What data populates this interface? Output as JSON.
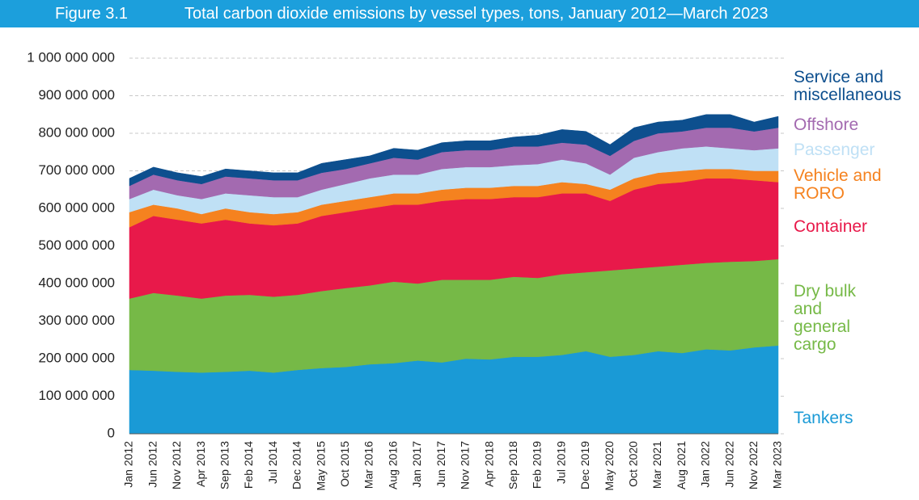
{
  "chart_data": {
    "type": "stacked_area",
    "figure_label": "Figure 3.1",
    "title": "Total carbon dioxide emissions by vessel types, tons, January 2012—March 2023",
    "categories": [
      "Jan 2012",
      "Jun 2012",
      "Nov 2012",
      "Apr 2013",
      "Sep 2013",
      "Feb 2014",
      "Jul 2014",
      "Dec 2014",
      "May 2015",
      "Oct 2015",
      "Mar 2016",
      "Aug 2016",
      "Jan 2017",
      "Jun 2017",
      "Nov 2017",
      "Apr 2018",
      "Sep 2018",
      "Feb 2019",
      "Jul 2019",
      "Dec 2019",
      "May 2020",
      "Oct 2020",
      "Mar 2021",
      "Aug 2021",
      "Jan 2022",
      "Jun 2022",
      "Nov 2022",
      "Mar 2023"
    ],
    "ylim": [
      0,
      1000000000
    ],
    "yticks": [
      0,
      {
        "value": 100000000,
        "label": "100 000 000"
      },
      {
        "value": 200000000,
        "label": "200 000 000"
      },
      {
        "value": 300000000,
        "label": "300 000 000"
      },
      {
        "value": 400000000,
        "label": "400 000 000"
      },
      {
        "value": 500000000,
        "label": "500 000 000"
      },
      {
        "value": 600000000,
        "label": "600 000 000"
      },
      {
        "value": 700000000,
        "label": "700 000 000"
      },
      {
        "value": 800000000,
        "label": "800 000 000"
      },
      {
        "value": 900000000,
        "label": "900 000 000"
      },
      {
        "value": 1000000000,
        "label": "1 000 000 000"
      }
    ],
    "grid": true,
    "series": [
      {
        "name": "Tankers",
        "color": "#1a9ad6",
        "values": [
          170000000,
          168000000,
          165000000,
          163000000,
          165000000,
          168000000,
          163000000,
          170000000,
          175000000,
          178000000,
          185000000,
          188000000,
          195000000,
          190000000,
          200000000,
          198000000,
          205000000,
          205000000,
          210000000,
          220000000,
          205000000,
          210000000,
          220000000,
          215000000,
          225000000,
          222000000,
          230000000,
          235000000
        ]
      },
      {
        "name": "Dry bulk and general cargo",
        "color": "#76b947",
        "values": [
          190000000,
          207000000,
          203000000,
          197000000,
          203000000,
          202000000,
          202000000,
          200000000,
          205000000,
          210000000,
          210000000,
          217000000,
          205000000,
          220000000,
          210000000,
          212000000,
          213000000,
          210000000,
          215000000,
          210000000,
          230000000,
          230000000,
          225000000,
          235000000,
          230000000,
          236000000,
          230000000,
          230000000
        ]
      },
      {
        "name": "Container",
        "color": "#e8194a",
        "values": [
          190000000,
          205000000,
          202000000,
          200000000,
          202000000,
          190000000,
          190000000,
          190000000,
          200000000,
          202000000,
          205000000,
          205000000,
          210000000,
          210000000,
          215000000,
          215000000,
          212000000,
          215000000,
          215000000,
          210000000,
          185000000,
          210000000,
          220000000,
          220000000,
          225000000,
          222000000,
          215000000,
          205000000
        ]
      },
      {
        "name": "Vehicle and RORO",
        "color": "#f5821f",
        "values": [
          40000000,
          30000000,
          30000000,
          25000000,
          30000000,
          30000000,
          30000000,
          30000000,
          30000000,
          30000000,
          30000000,
          30000000,
          30000000,
          30000000,
          30000000,
          30000000,
          30000000,
          30000000,
          30000000,
          25000000,
          30000000,
          30000000,
          30000000,
          30000000,
          25000000,
          25000000,
          25000000,
          30000000
        ]
      },
      {
        "name": "Passenger",
        "color": "#bfe0f5",
        "values": [
          35000000,
          40000000,
          35000000,
          40000000,
          40000000,
          45000000,
          45000000,
          40000000,
          40000000,
          45000000,
          50000000,
          50000000,
          50000000,
          55000000,
          55000000,
          55000000,
          55000000,
          58000000,
          60000000,
          55000000,
          40000000,
          55000000,
          55000000,
          60000000,
          60000000,
          55000000,
          55000000,
          60000000
        ]
      },
      {
        "name": "Offshore",
        "color": "#a36ab0",
        "values": [
          35000000,
          40000000,
          40000000,
          40000000,
          45000000,
          45000000,
          45000000,
          45000000,
          45000000,
          40000000,
          40000000,
          45000000,
          40000000,
          45000000,
          45000000,
          45000000,
          50000000,
          47000000,
          45000000,
          50000000,
          50000000,
          45000000,
          50000000,
          45000000,
          50000000,
          55000000,
          50000000,
          55000000
        ]
      },
      {
        "name": "Service and miscellaneous",
        "color": "#0d4f8e",
        "values": [
          20000000,
          20000000,
          20000000,
          20000000,
          20000000,
          20000000,
          20000000,
          20000000,
          25000000,
          25000000,
          20000000,
          25000000,
          25000000,
          25000000,
          25000000,
          25000000,
          25000000,
          30000000,
          35000000,
          35000000,
          30000000,
          35000000,
          30000000,
          30000000,
          35000000,
          35000000,
          25000000,
          30000000
        ]
      }
    ]
  }
}
